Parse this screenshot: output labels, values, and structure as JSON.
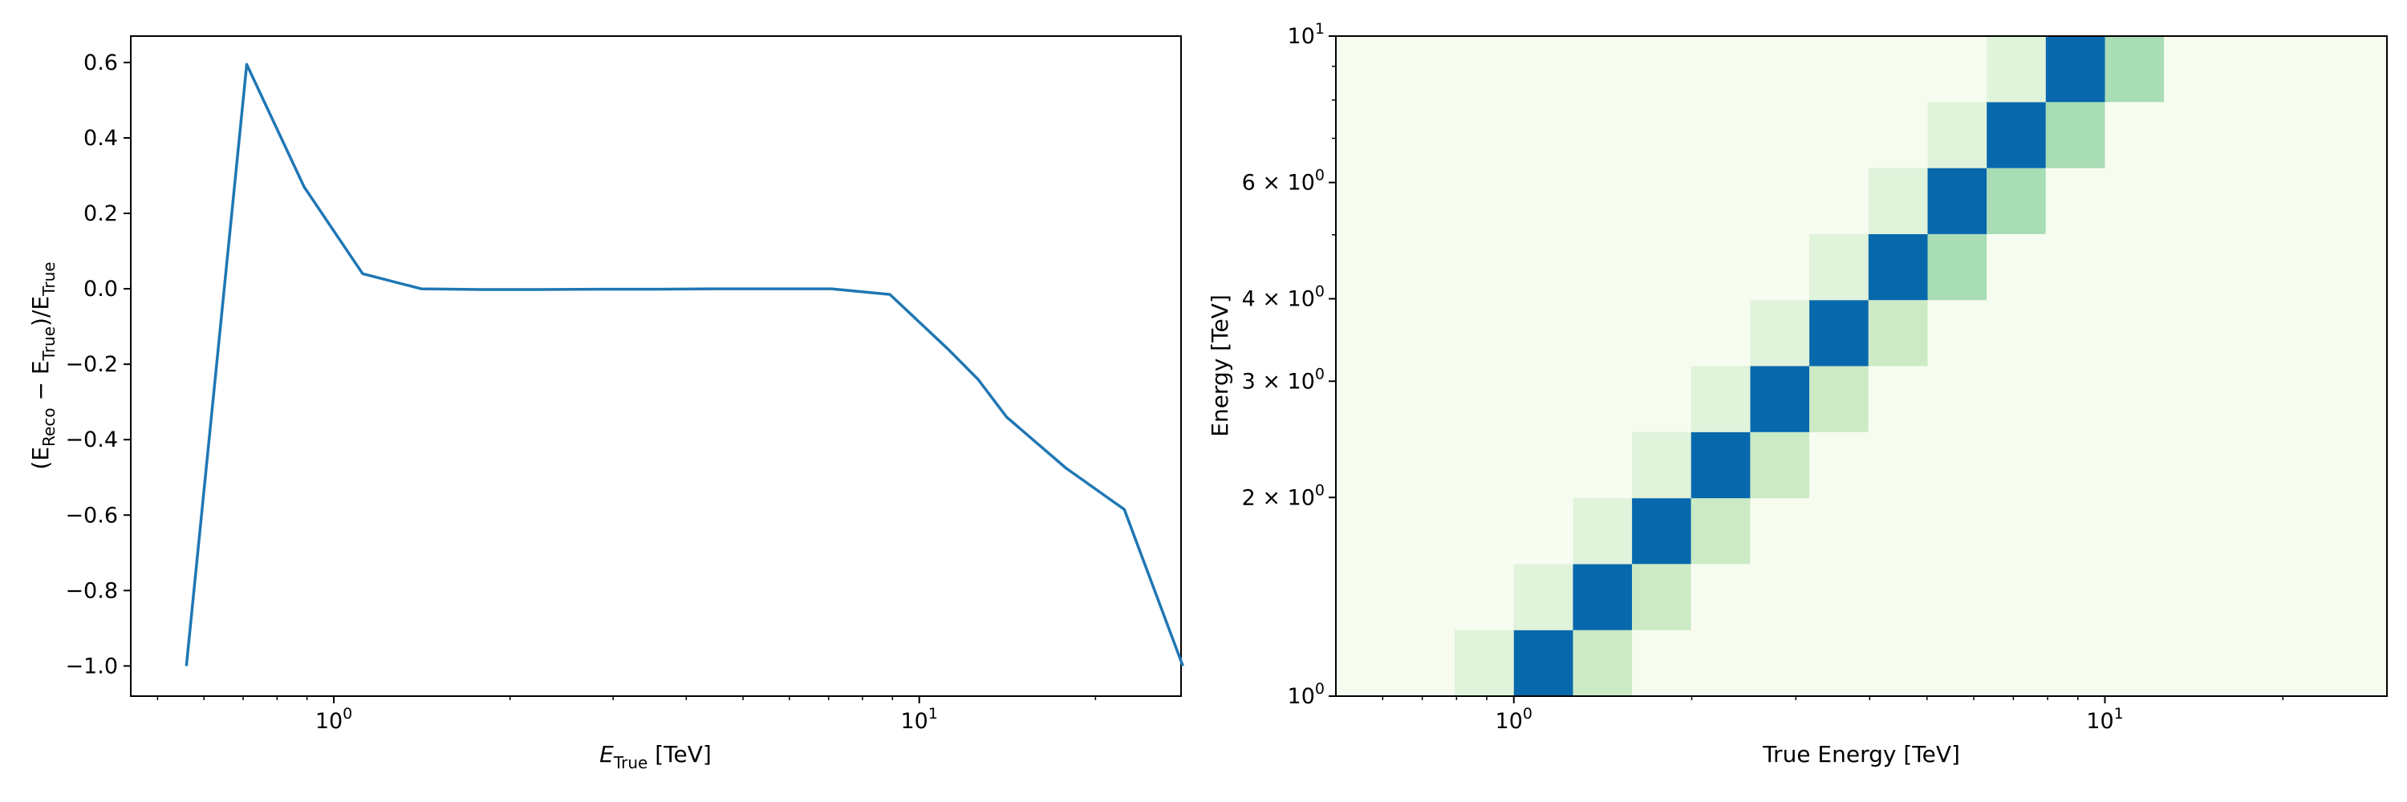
{
  "chart_data": [
    {
      "type": "line",
      "title": "",
      "xlabel": {
        "main": "E",
        "sub": "True",
        "unit": " [TeV]"
      },
      "ylabel": {
        "p1": "(E",
        "s1": "Reco",
        "p2": " − E",
        "s2": "True",
        "p3": ")/E",
        "s3": "True"
      },
      "xscale": "log",
      "xlim": [
        0.45,
        28
      ],
      "ylim": [
        -1.08,
        0.67
      ],
      "x_ticks": [
        {
          "value": 1,
          "base": "10",
          "exp": "0"
        },
        {
          "value": 10,
          "base": "10",
          "exp": "1"
        }
      ],
      "y_ticks": [
        {
          "value": 0.6,
          "label": "0.6"
        },
        {
          "value": 0.4,
          "label": "0.4"
        },
        {
          "value": 0.2,
          "label": "0.2"
        },
        {
          "value": 0.0,
          "label": "0.0"
        },
        {
          "value": -0.2,
          "label": "−0.2"
        },
        {
          "value": -0.4,
          "label": "−0.4"
        },
        {
          "value": -0.6,
          "label": "−0.6"
        },
        {
          "value": -0.8,
          "label": "−0.8"
        },
        {
          "value": -1.0,
          "label": "−1.0"
        }
      ],
      "series": [
        {
          "color": "#1f77b4",
          "x": [
            0.56,
            0.71,
            0.89,
            1.12,
            1.41,
            1.78,
            2.24,
            2.82,
            3.55,
            4.47,
            5.62,
            7.08,
            8.91,
            11.2,
            12.6,
            14.1,
            17.8,
            22.4,
            28.2
          ],
          "y": [
            -1.0,
            0.595,
            0.27,
            0.04,
            0.0,
            -0.002,
            -0.002,
            -0.001,
            -0.001,
            0.0,
            0.0,
            0.0,
            -0.015,
            -0.16,
            -0.24,
            -0.34,
            -0.475,
            -0.585,
            -1.0
          ]
        }
      ],
      "grid": false,
      "legend": "none"
    },
    {
      "type": "heatmap",
      "title": "",
      "xlabel": "True Energy [TeV]",
      "ylabel": "Energy [TeV]",
      "xscale": "log",
      "yscale": "log",
      "xlim": [
        0.5,
        30
      ],
      "ylim": [
        1,
        10
      ],
      "x_ticks": [
        {
          "value": 1,
          "base": "10",
          "exp": "0"
        },
        {
          "value": 10,
          "base": "10",
          "exp": "1"
        }
      ],
      "y_ticks": [
        {
          "value": 1,
          "mant": "",
          "base": "10",
          "exp": "0"
        },
        {
          "value": 2,
          "mant": "2 × ",
          "base": "10",
          "exp": "0"
        },
        {
          "value": 3,
          "mant": "3 × ",
          "base": "10",
          "exp": "0"
        },
        {
          "value": 4,
          "mant": "4 × ",
          "base": "10",
          "exp": "0"
        },
        {
          "value": 6,
          "mant": "6 × ",
          "base": "10",
          "exp": "0"
        },
        {
          "value": 10,
          "mant": "",
          "base": "10",
          "exp": "1"
        }
      ],
      "colormap": "GnBu",
      "cmap_colors": [
        "#f7fcf0",
        "#e0f3db",
        "#ccebc5",
        "#a8ddb5",
        "#7bccc4",
        "#4eb3d3",
        "#2b8cbe",
        "#0868ac"
      ],
      "background_color": "#f7fcf0",
      "x_bin_edges": [
        0.5,
        0.631,
        0.794,
        1.0,
        1.259,
        1.585,
        1.995,
        2.512,
        3.162,
        3.981,
        5.012,
        6.31,
        7.943,
        10.0,
        12.589,
        15.849,
        19.953,
        25.119,
        31.623
      ],
      "y_bin_edges": [
        1.0,
        1.259,
        1.585,
        1.995,
        2.512,
        3.162,
        3.981,
        5.012,
        6.31,
        7.943,
        10.0
      ],
      "cells": [
        {
          "xi": 2,
          "yi": 0,
          "v": 0.17
        },
        {
          "xi": 3,
          "yi": 0,
          "v": 1.0
        },
        {
          "xi": 4,
          "yi": 0,
          "v": 0.27
        },
        {
          "xi": 5,
          "yi": 0,
          "v": 0.04
        },
        {
          "xi": 3,
          "yi": 1,
          "v": 0.15
        },
        {
          "xi": 4,
          "yi": 1,
          "v": 1.0
        },
        {
          "xi": 5,
          "yi": 1,
          "v": 0.28
        },
        {
          "xi": 6,
          "yi": 1,
          "v": 0.04
        },
        {
          "xi": 4,
          "yi": 2,
          "v": 0.15
        },
        {
          "xi": 5,
          "yi": 2,
          "v": 1.0
        },
        {
          "xi": 6,
          "yi": 2,
          "v": 0.3
        },
        {
          "xi": 7,
          "yi": 2,
          "v": 0.04
        },
        {
          "xi": 5,
          "yi": 3,
          "v": 0.14
        },
        {
          "xi": 6,
          "yi": 3,
          "v": 1.0
        },
        {
          "xi": 7,
          "yi": 3,
          "v": 0.31
        },
        {
          "xi": 8,
          "yi": 3,
          "v": 0.04
        },
        {
          "xi": 6,
          "yi": 4,
          "v": 0.13
        },
        {
          "xi": 7,
          "yi": 4,
          "v": 1.0
        },
        {
          "xi": 8,
          "yi": 4,
          "v": 0.33
        },
        {
          "xi": 9,
          "yi": 4,
          "v": 0.04
        },
        {
          "xi": 7,
          "yi": 5,
          "v": 0.12
        },
        {
          "xi": 8,
          "yi": 5,
          "v": 1.0
        },
        {
          "xi": 9,
          "yi": 5,
          "v": 0.35
        },
        {
          "xi": 10,
          "yi": 5,
          "v": 0.04
        },
        {
          "xi": 8,
          "yi": 6,
          "v": 0.11
        },
        {
          "xi": 9,
          "yi": 6,
          "v": 1.0
        },
        {
          "xi": 10,
          "yi": 6,
          "v": 0.36
        },
        {
          "xi": 11,
          "yi": 6,
          "v": 0.04
        },
        {
          "xi": 9,
          "yi": 7,
          "v": 0.1
        },
        {
          "xi": 10,
          "yi": 7,
          "v": 1.0
        },
        {
          "xi": 11,
          "yi": 7,
          "v": 0.38
        },
        {
          "xi": 12,
          "yi": 7,
          "v": 0.04
        },
        {
          "xi": 10,
          "yi": 8,
          "v": 0.09
        },
        {
          "xi": 11,
          "yi": 8,
          "v": 1.0
        },
        {
          "xi": 12,
          "yi": 8,
          "v": 0.4
        },
        {
          "xi": 13,
          "yi": 8,
          "v": 0.04
        },
        {
          "xi": 11,
          "yi": 9,
          "v": 0.09
        },
        {
          "xi": 12,
          "yi": 9,
          "v": 1.0
        },
        {
          "xi": 13,
          "yi": 9,
          "v": 0.41
        },
        {
          "xi": 14,
          "yi": 9,
          "v": 0.04
        }
      ],
      "grid": false,
      "legend": "none"
    }
  ]
}
